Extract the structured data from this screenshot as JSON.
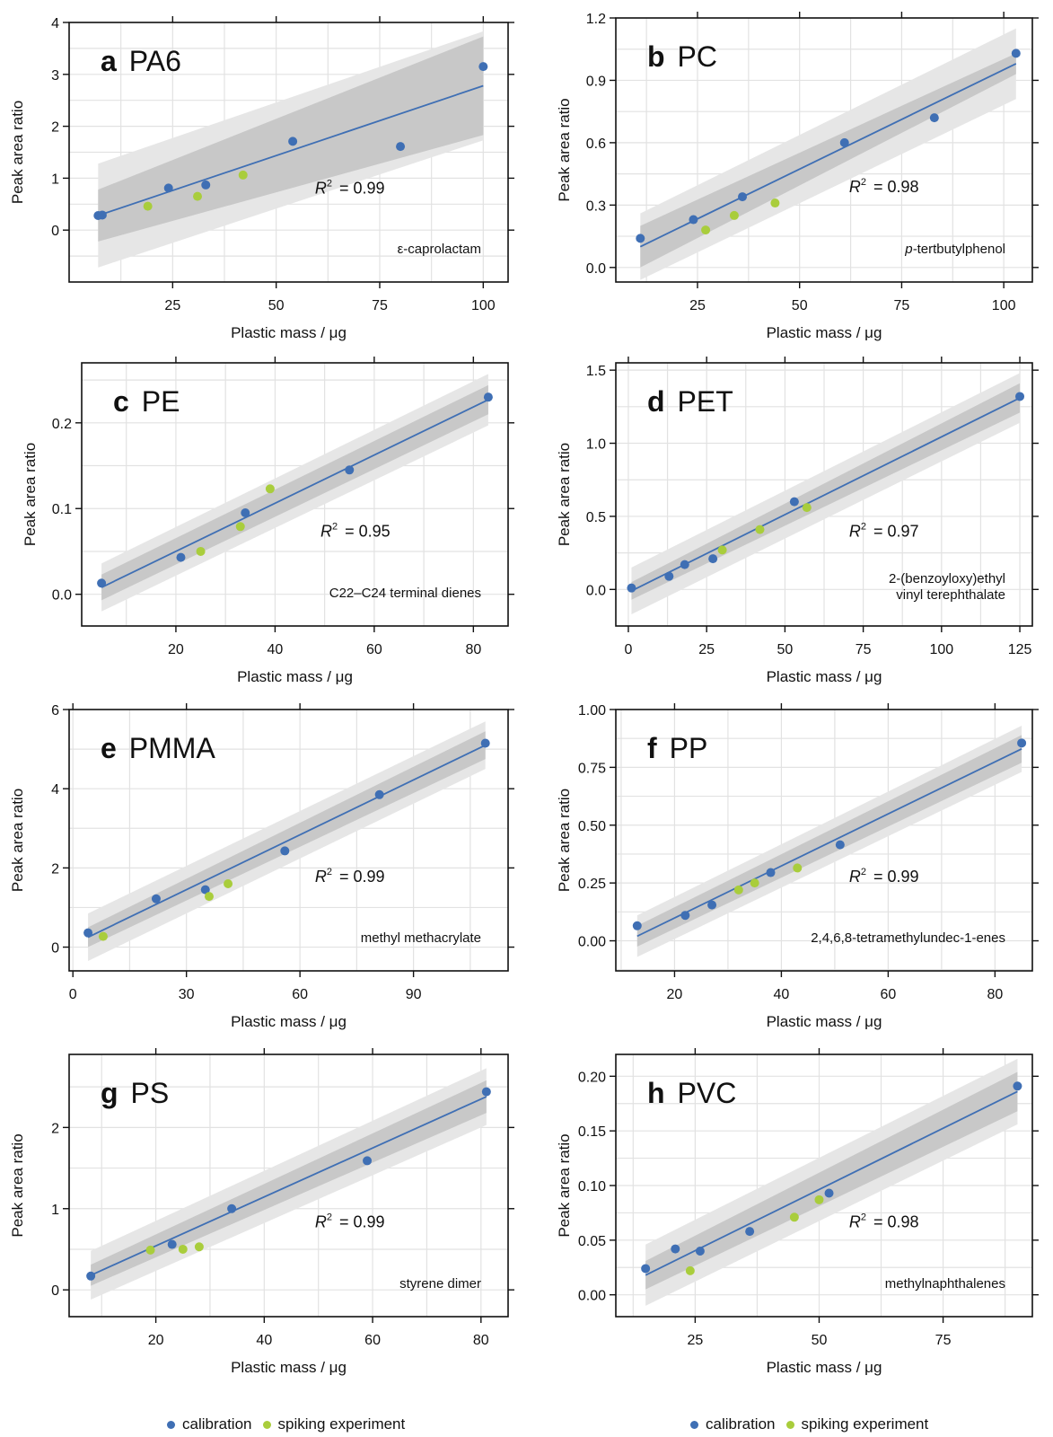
{
  "figure": {
    "xlabel": "Plastic mass / μg",
    "ylabel": "Peak area ratio",
    "legend": {
      "calibration_label": "calibration",
      "spiking_label": "spiking experiment",
      "calibration_color": "#3f6fb4",
      "spiking_color": "#a9cd3c"
    },
    "colors": {
      "fit_line": "#3f6fb4",
      "band_outer": "#e6e6e6",
      "band_inner": "#c8c8c8",
      "grid": "#e2e2e2"
    }
  },
  "chart_data": [
    {
      "id": "a",
      "type": "scatter",
      "panel_letter": "a",
      "polymer": "PA6",
      "r2_label": "= 0.99",
      "compound": "ε-caprolactam",
      "xlim": [
        0,
        106
      ],
      "ylim": [
        -1,
        4
      ],
      "xticks": [
        25,
        50,
        75,
        100
      ],
      "yticks": [
        0,
        1,
        2,
        3,
        4
      ],
      "xlabel": "Plastic mass / μg",
      "ylabel": "Peak area ratio",
      "fit": {
        "x": [
          7,
          100
        ],
        "y": [
          0.28,
          2.78
        ]
      },
      "bands": {
        "inner": [
          0.5,
          0.95
        ],
        "outer": [
          1.0,
          1.05
        ]
      },
      "calibration": [
        [
          7,
          0.28
        ],
        [
          8,
          0.29
        ],
        [
          24,
          0.81
        ],
        [
          33,
          0.87
        ],
        [
          54,
          1.71
        ],
        [
          80,
          1.61
        ],
        [
          100,
          3.15
        ]
      ],
      "spiking": [
        [
          19,
          0.46
        ],
        [
          31,
          0.65
        ],
        [
          42,
          1.06
        ]
      ]
    },
    {
      "id": "b",
      "type": "scatter",
      "panel_letter": "b",
      "polymer": "PC",
      "r2_label": "= 0.98",
      "compound": "tertbutylphenol",
      "compound_prefix": "p-",
      "xlim": [
        5,
        107
      ],
      "ylim": [
        -0.07,
        1.2
      ],
      "xticks": [
        25,
        50,
        75,
        100
      ],
      "yticks": [
        0.0,
        0.3,
        0.6,
        0.9,
        1.2
      ],
      "ytick_labels": [
        "0.0",
        "0.3",
        "0.6",
        "0.9",
        "1.2"
      ],
      "xlabel": "Plastic mass / μg",
      "ylabel": "Peak area ratio",
      "fit": {
        "x": [
          11,
          103
        ],
        "y": [
          0.1,
          0.98
        ]
      },
      "bands": {
        "inner": [
          0.1,
          0.05
        ],
        "outer": [
          0.16,
          0.17
        ]
      },
      "calibration": [
        [
          11,
          0.14
        ],
        [
          24,
          0.23
        ],
        [
          36,
          0.34
        ],
        [
          61,
          0.6
        ],
        [
          83,
          0.72
        ],
        [
          103,
          1.03
        ]
      ],
      "spiking": [
        [
          27,
          0.18
        ],
        [
          34,
          0.25
        ],
        [
          44,
          0.31
        ]
      ]
    },
    {
      "id": "c",
      "type": "scatter",
      "panel_letter": "c",
      "polymer": "PE",
      "r2_label": "= 0.95",
      "compound": "C22–C24 terminal dienes",
      "xlim": [
        1,
        87
      ],
      "ylim": [
        -0.037,
        0.27
      ],
      "xticks": [
        20,
        40,
        60,
        80
      ],
      "yticks": [
        0.0,
        0.1,
        0.2
      ],
      "ytick_labels": [
        "0.0",
        "0.1",
        "0.2"
      ],
      "xlabel": "Plastic mass / μg",
      "ylabel": "Peak area ratio",
      "fit": {
        "x": [
          5,
          83
        ],
        "y": [
          0.008,
          0.227
        ]
      },
      "bands": {
        "inner": [
          0.015,
          0.017
        ],
        "outer": [
          0.028,
          0.03
        ]
      },
      "calibration": [
        [
          5,
          0.013
        ],
        [
          21,
          0.043
        ],
        [
          34,
          0.095
        ],
        [
          55,
          0.145
        ],
        [
          83,
          0.23
        ]
      ],
      "spiking": [
        [
          25,
          0.05
        ],
        [
          33,
          0.079
        ],
        [
          39,
          0.123
        ]
      ]
    },
    {
      "id": "d",
      "type": "scatter",
      "panel_letter": "d",
      "polymer": "PET",
      "r2_label": "= 0.97",
      "compound": "2-(benzoyloxy)ethyl",
      "compound_line2": "vinyl terephthalate",
      "xlim": [
        -4,
        129
      ],
      "ylim": [
        -0.25,
        1.55
      ],
      "xticks": [
        0,
        25,
        50,
        75,
        100,
        125
      ],
      "yticks": [
        0.0,
        0.5,
        1.0,
        1.5
      ],
      "ytick_labels": [
        "0.0",
        "0.5",
        "1.0",
        "1.5"
      ],
      "xlabel": "Plastic mass / μg",
      "ylabel": "Peak area ratio",
      "fit": {
        "x": [
          1,
          125
        ],
        "y": [
          -0.01,
          1.31
        ]
      },
      "bands": {
        "inner": [
          0.06,
          0.1
        ],
        "outer": [
          0.16,
          0.17
        ]
      },
      "calibration": [
        [
          1,
          0.01
        ],
        [
          13,
          0.09
        ],
        [
          18,
          0.17
        ],
        [
          27,
          0.21
        ],
        [
          53,
          0.6
        ],
        [
          125,
          1.32
        ]
      ],
      "spiking": [
        [
          30,
          0.27
        ],
        [
          42,
          0.41
        ],
        [
          57,
          0.56
        ]
      ]
    },
    {
      "id": "e",
      "type": "scatter",
      "panel_letter": "e",
      "polymer": "PMMA",
      "r2_label": "= 0.99",
      "compound": "methyl methacrylate",
      "xlim": [
        -1,
        115
      ],
      "ylim": [
        -0.6,
        6
      ],
      "xticks": [
        0,
        30,
        60,
        90
      ],
      "yticks": [
        0,
        2,
        4,
        6
      ],
      "xlabel": "Plastic mass / μg",
      "ylabel": "Peak area ratio",
      "fit": {
        "x": [
          4,
          109
        ],
        "y": [
          0.25,
          5.1
        ]
      },
      "bands": {
        "inner": [
          0.25,
          0.35
        ],
        "outer": [
          0.6,
          0.6
        ]
      },
      "calibration": [
        [
          4,
          0.36
        ],
        [
          22,
          1.22
        ],
        [
          35,
          1.45
        ],
        [
          56,
          2.43
        ],
        [
          81,
          3.85
        ],
        [
          109,
          5.15
        ]
      ],
      "spiking": [
        [
          8,
          0.27
        ],
        [
          36,
          1.28
        ],
        [
          41,
          1.6
        ]
      ]
    },
    {
      "id": "f",
      "type": "scatter",
      "panel_letter": "f",
      "polymer": "PP",
      "r2_label": "= 0.99",
      "compound": "2,4,6,8-tetramethylundec-1-enes",
      "xlim": [
        9,
        87
      ],
      "ylim": [
        -0.13,
        1.0
      ],
      "xticks": [
        20,
        40,
        60,
        80
      ],
      "yticks": [
        0.0,
        0.25,
        0.5,
        0.75,
        1.0
      ],
      "ytick_labels": [
        "0.00",
        "0.25",
        "0.50",
        "0.75",
        "1.00"
      ],
      "xlabel": "Plastic mass / μg",
      "ylabel": "Peak area ratio",
      "fit": {
        "x": [
          13,
          85
        ],
        "y": [
          0.02,
          0.83
        ]
      },
      "bands": {
        "inner": [
          0.045,
          0.06
        ],
        "outer": [
          0.09,
          0.1
        ]
      },
      "calibration": [
        [
          13,
          0.065
        ],
        [
          22,
          0.11
        ],
        [
          27,
          0.155
        ],
        [
          38,
          0.295
        ],
        [
          51,
          0.415
        ],
        [
          85,
          0.855
        ]
      ],
      "spiking": [
        [
          32,
          0.22
        ],
        [
          35,
          0.25
        ],
        [
          43,
          0.315
        ]
      ]
    },
    {
      "id": "g",
      "type": "scatter",
      "panel_letter": "g",
      "polymer": "PS",
      "r2_label": "= 0.99",
      "compound": "styrene dimer",
      "xlim": [
        4,
        85
      ],
      "ylim": [
        -0.33,
        2.9
      ],
      "xticks": [
        20,
        40,
        60,
        80
      ],
      "yticks": [
        0,
        1,
        2
      ],
      "xlabel": "Plastic mass / μg",
      "ylabel": "Peak area ratio",
      "fit": {
        "x": [
          8,
          81
        ],
        "y": [
          0.18,
          2.38
        ]
      },
      "bands": {
        "inner": [
          0.13,
          0.2
        ],
        "outer": [
          0.3,
          0.35
        ]
      },
      "calibration": [
        [
          8,
          0.17
        ],
        [
          23,
          0.56
        ],
        [
          34,
          1.0
        ],
        [
          59,
          1.59
        ],
        [
          81,
          2.44
        ]
      ],
      "spiking": [
        [
          19,
          0.49
        ],
        [
          25,
          0.5
        ],
        [
          28,
          0.53
        ]
      ]
    },
    {
      "id": "h",
      "type": "scatter",
      "panel_letter": "h",
      "polymer": "PVC",
      "r2_label": "= 0.98",
      "compound": "methylnaphthalenes",
      "xlim": [
        9,
        93
      ],
      "ylim": [
        -0.02,
        0.22
      ],
      "xticks": [
        25,
        50,
        75
      ],
      "yticks": [
        0.0,
        0.05,
        0.1,
        0.15,
        0.2
      ],
      "ytick_labels": [
        "0.00",
        "0.05",
        "0.10",
        "0.15",
        "0.20"
      ],
      "xlabel": "Plastic mass / μg",
      "ylabel": "Peak area ratio",
      "fit": {
        "x": [
          15,
          90
        ],
        "y": [
          0.018,
          0.186
        ]
      },
      "bands": {
        "inner": [
          0.013,
          0.018
        ],
        "outer": [
          0.028,
          0.03
        ]
      },
      "calibration": [
        [
          15,
          0.024
        ],
        [
          21,
          0.042
        ],
        [
          26,
          0.04
        ],
        [
          36,
          0.058
        ],
        [
          52,
          0.093
        ],
        [
          90,
          0.191
        ]
      ],
      "spiking": [
        [
          24,
          0.022
        ],
        [
          45,
          0.071
        ],
        [
          50,
          0.087
        ]
      ]
    }
  ]
}
